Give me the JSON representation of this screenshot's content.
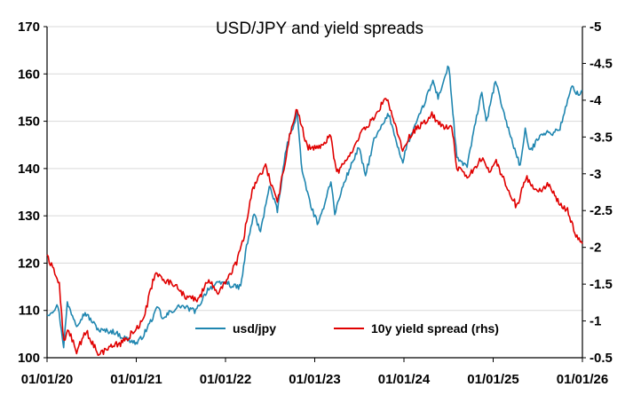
{
  "chart_data": {
    "type": "line",
    "title": "USD/JPY and yield spreads",
    "xlabel": "",
    "ylabel": "",
    "y2label": "",
    "x_ticks": [
      "01/01/20",
      "01/01/21",
      "01/01/22",
      "01/01/23",
      "01/01/24",
      "01/01/25",
      "01/01/26"
    ],
    "x_range": [
      "2020-01-01",
      "2026-01-01"
    ],
    "ylim": [
      100,
      170
    ],
    "y_ticks": [
      100,
      110,
      120,
      130,
      140,
      150,
      160,
      170
    ],
    "y2lim": [
      -0.5,
      -5
    ],
    "y2_inverted": true,
    "y2_ticks": [
      -0.5,
      -1,
      -1.5,
      -2,
      -2.5,
      -3,
      -3.5,
      -4,
      -4.5,
      -5
    ],
    "y2_tick_labels": [
      "-0.5",
      "-1",
      "-1.5",
      "-2",
      "-2.5",
      "-3",
      "-3.5",
      "-4",
      "-4.5",
      "-5"
    ],
    "grid": "horizontal",
    "legend_position": "bottom-center",
    "series": [
      {
        "name": "usd/jpy",
        "axis": "left",
        "color": "#1F86B0",
        "points": [
          [
            "2020-01-01",
            109.0
          ],
          [
            "2020-02-15",
            111.0
          ],
          [
            "2020-03-09",
            102.5
          ],
          [
            "2020-03-24",
            111.5
          ],
          [
            "2020-05-01",
            107.0
          ],
          [
            "2020-06-05",
            109.5
          ],
          [
            "2020-08-01",
            105.8
          ],
          [
            "2020-10-01",
            105.5
          ],
          [
            "2020-11-01",
            104.5
          ],
          [
            "2021-01-04",
            103.0
          ],
          [
            "2021-02-01",
            105.0
          ],
          [
            "2021-03-31",
            110.7
          ],
          [
            "2021-04-20",
            108.0
          ],
          [
            "2021-05-15",
            109.5
          ],
          [
            "2021-07-01",
            111.0
          ],
          [
            "2021-09-01",
            109.8
          ],
          [
            "2021-10-20",
            114.5
          ],
          [
            "2021-11-24",
            115.5
          ],
          [
            "2022-01-04",
            116.0
          ],
          [
            "2022-02-01",
            115.0
          ],
          [
            "2022-03-04",
            115.0
          ],
          [
            "2022-03-28",
            123.5
          ],
          [
            "2022-04-28",
            130.5
          ],
          [
            "2022-05-24",
            126.5
          ],
          [
            "2022-06-29",
            136.5
          ],
          [
            "2022-08-01",
            131.0
          ],
          [
            "2022-09-07",
            144.5
          ],
          [
            "2022-10-21",
            151.8
          ],
          [
            "2022-11-11",
            139.0
          ],
          [
            "2022-12-20",
            131.5
          ],
          [
            "2023-01-16",
            128.0
          ],
          [
            "2023-03-08",
            137.5
          ],
          [
            "2023-03-24",
            130.5
          ],
          [
            "2023-05-01",
            137.0
          ],
          [
            "2023-06-30",
            144.5
          ],
          [
            "2023-07-28",
            138.5
          ],
          [
            "2023-09-01",
            146.0
          ],
          [
            "2023-10-31",
            151.5
          ],
          [
            "2023-12-28",
            141.0
          ],
          [
            "2024-01-10",
            144.5
          ],
          [
            "2024-02-29",
            150.5
          ],
          [
            "2024-04-29",
            158.5
          ],
          [
            "2024-05-20",
            155.0
          ],
          [
            "2024-07-03",
            161.8
          ],
          [
            "2024-08-05",
            142.0
          ],
          [
            "2024-09-16",
            140.5
          ],
          [
            "2024-11-15",
            156.5
          ],
          [
            "2024-12-03",
            149.5
          ],
          [
            "2025-01-10",
            158.5
          ],
          [
            "2025-02-28",
            149.0
          ],
          [
            "2025-04-21",
            140.5
          ],
          [
            "2025-05-12",
            148.0
          ],
          [
            "2025-06-01",
            143.5
          ],
          [
            "2025-07-15",
            147.5
          ],
          [
            "2025-09-01",
            147.5
          ],
          [
            "2025-10-01",
            148.5
          ],
          [
            "2025-11-20",
            157.5
          ],
          [
            "2025-12-15",
            155.5
          ],
          [
            "2026-01-01",
            156.5
          ]
        ]
      },
      {
        "name": "10y yield spread (rhs)",
        "axis": "right",
        "color": "#E00000",
        "points": [
          [
            "2020-01-01",
            -1.9
          ],
          [
            "2020-02-20",
            -1.5
          ],
          [
            "2020-03-10",
            -0.7
          ],
          [
            "2020-03-25",
            -0.9
          ],
          [
            "2020-05-01",
            -0.6
          ],
          [
            "2020-06-10",
            -0.85
          ],
          [
            "2020-08-01",
            -0.55
          ],
          [
            "2020-09-15",
            -0.65
          ],
          [
            "2020-11-01",
            -0.7
          ],
          [
            "2021-01-04",
            -0.9
          ],
          [
            "2021-02-01",
            -1.05
          ],
          [
            "2021-03-18",
            -1.65
          ],
          [
            "2021-05-01",
            -1.55
          ],
          [
            "2021-06-15",
            -1.45
          ],
          [
            "2021-08-01",
            -1.3
          ],
          [
            "2021-09-15",
            -1.3
          ],
          [
            "2021-10-20",
            -1.55
          ],
          [
            "2021-12-01",
            -1.4
          ],
          [
            "2022-01-01",
            -1.5
          ],
          [
            "2022-02-15",
            -1.8
          ],
          [
            "2022-03-15",
            -2.1
          ],
          [
            "2022-04-20",
            -2.8
          ],
          [
            "2022-05-10",
            -2.9
          ],
          [
            "2022-06-14",
            -3.1
          ],
          [
            "2022-08-01",
            -2.6
          ],
          [
            "2022-09-20",
            -3.5
          ],
          [
            "2022-10-21",
            -3.9
          ],
          [
            "2022-12-01",
            -3.35
          ],
          [
            "2023-01-10",
            -3.35
          ],
          [
            "2023-03-08",
            -3.5
          ],
          [
            "2023-04-01",
            -3.0
          ],
          [
            "2023-06-01",
            -3.3
          ],
          [
            "2023-07-10",
            -3.55
          ],
          [
            "2023-08-30",
            -3.75
          ],
          [
            "2023-10-19",
            -4.05
          ],
          [
            "2023-12-27",
            -3.35
          ],
          [
            "2024-02-01",
            -3.55
          ],
          [
            "2024-04-25",
            -3.8
          ],
          [
            "2024-06-01",
            -3.65
          ],
          [
            "2024-07-15",
            -3.65
          ],
          [
            "2024-08-05",
            -3.1
          ],
          [
            "2024-09-16",
            -2.95
          ],
          [
            "2024-11-15",
            -3.2
          ],
          [
            "2024-12-15",
            -3.05
          ],
          [
            "2025-01-13",
            -3.15
          ],
          [
            "2025-03-01",
            -2.8
          ],
          [
            "2025-04-07",
            -2.55
          ],
          [
            "2025-05-15",
            -2.95
          ],
          [
            "2025-07-01",
            -2.75
          ],
          [
            "2025-08-15",
            -2.85
          ],
          [
            "2025-10-01",
            -2.6
          ],
          [
            "2025-11-01",
            -2.5
          ],
          [
            "2025-12-01",
            -2.2
          ],
          [
            "2026-01-01",
            -2.05
          ]
        ]
      }
    ]
  }
}
